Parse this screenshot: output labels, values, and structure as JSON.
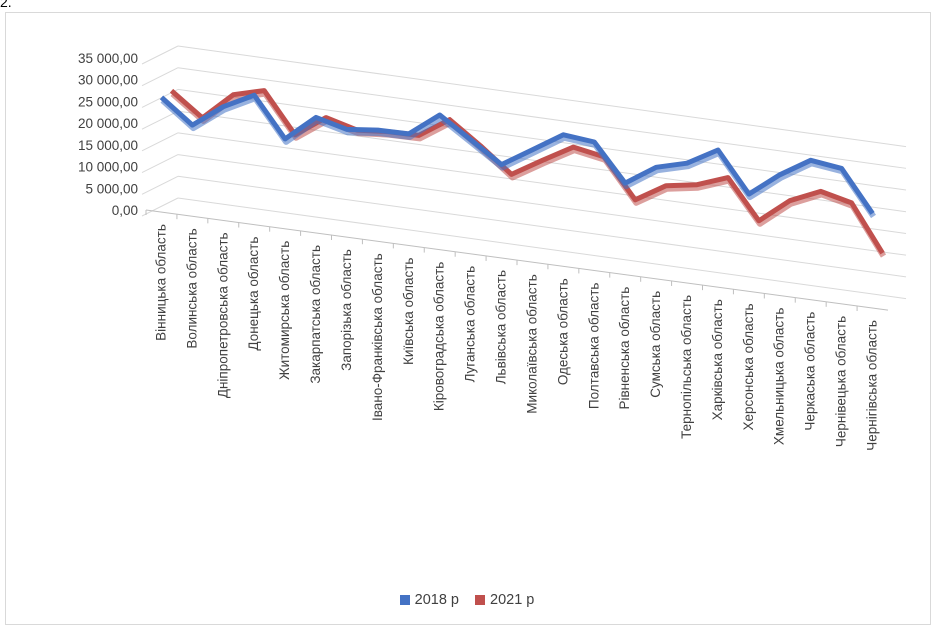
{
  "page": {
    "stray_text": "2."
  },
  "chart_data": {
    "type": "line",
    "style": "3d-line",
    "title": "",
    "xlabel": "",
    "ylabel": "",
    "ylim": [
      0,
      35000
    ],
    "y_ticks": [
      "0,00",
      "5 000,00",
      "10 000,00",
      "15 000,00",
      "20 000,00",
      "25 000,00",
      "30 000,00",
      "35 000,00"
    ],
    "grid": true,
    "legend_position": "bottom",
    "categories": [
      "Вінницька область",
      "Волинська область",
      "Дніпропетровська область",
      "Донецька область",
      "Житомирська область",
      "Закарпатська область",
      "Запорізька область",
      "Івано-Франківська область",
      "Київська область",
      "Кіровоградська область",
      "Луганська область",
      "Львівська область",
      "Миколаївська область",
      "Одеська область",
      "Полтавська область",
      "Рівненська область",
      "Сумська область",
      "Тернопільська область",
      "Харківська область",
      "Херсонська область",
      "Хмельницька область",
      "Черкаська область",
      "Чернівецька область",
      "Чернігівська область"
    ],
    "series": [
      {
        "name": "2018 р",
        "color": "#4472c4",
        "values": [
          26400,
          21000,
          26200,
          29800,
          20700,
          26600,
          24800,
          25600,
          25700,
          31000,
          26300,
          21500,
          25900,
          30300,
          29600,
          21100,
          25700,
          27600,
          31600,
          22400,
          27800,
          32100,
          31200,
          21800
        ]
      },
      {
        "name": "2021 р",
        "color": "#c0504d",
        "values": [
          26800,
          21500,
          27800,
          29700,
          20500,
          25400,
          23500,
          24100,
          24200,
          28800,
          23700,
          18100,
          22300,
          26300,
          25000,
          16100,
          20300,
          21500,
          24100,
          15100,
          20700,
          23800,
          22100,
          11500
        ]
      }
    ]
  }
}
